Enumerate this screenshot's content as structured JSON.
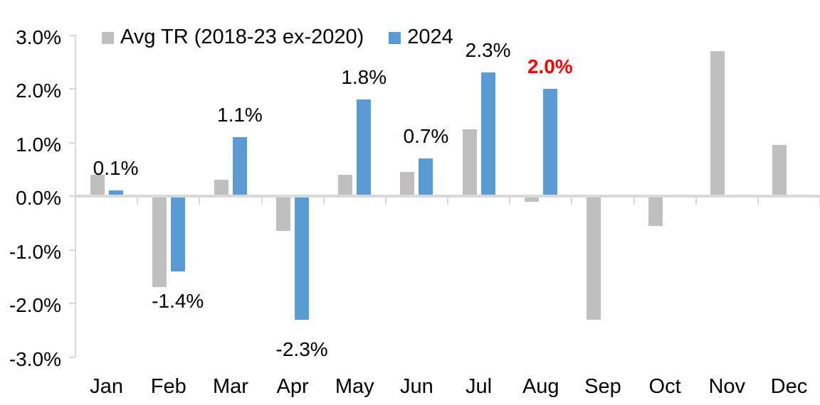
{
  "legend": {
    "series1_label": "Avg TR (2018-23 ex-2020)",
    "series2_label": "2024"
  },
  "colors": {
    "avg_series": "#bfbfbf",
    "y2024_series": "#5b9bd5",
    "axis": "#d9d9d9",
    "label_default": "#000000",
    "label_highlight": "#ff0000"
  },
  "chart_data": {
    "type": "bar",
    "title": "",
    "xlabel": "",
    "ylabel": "",
    "categories": [
      "Jan",
      "Feb",
      "Mar",
      "Apr",
      "May",
      "Jun",
      "Jul",
      "Aug",
      "Sep",
      "Oct",
      "Nov",
      "Dec"
    ],
    "series": [
      {
        "name": "Avg TR (2018-23 ex-2020)",
        "color": "#bfbfbf",
        "values": [
          0.4,
          -1.7,
          0.3,
          -0.65,
          0.4,
          0.45,
          1.25,
          -0.1,
          -2.3,
          -0.55,
          2.7,
          0.95
        ]
      },
      {
        "name": "2024",
        "color": "#5b9bd5",
        "values": [
          0.1,
          -1.4,
          1.1,
          -2.3,
          1.8,
          0.7,
          2.3,
          2.0,
          null,
          null,
          null,
          null
        ]
      }
    ],
    "data_labels": [
      {
        "category": "Jan",
        "text": "0.1%",
        "color": "#000000",
        "bold": false
      },
      {
        "category": "Feb",
        "text": "-1.4%",
        "color": "#000000",
        "bold": false
      },
      {
        "category": "Mar",
        "text": "1.1%",
        "color": "#000000",
        "bold": false
      },
      {
        "category": "Apr",
        "text": "-2.3%",
        "color": "#000000",
        "bold": false
      },
      {
        "category": "May",
        "text": "1.8%",
        "color": "#000000",
        "bold": false
      },
      {
        "category": "Jun",
        "text": "0.7%",
        "color": "#000000",
        "bold": false
      },
      {
        "category": "Jul",
        "text": "2.3%",
        "color": "#000000",
        "bold": false
      },
      {
        "category": "Aug",
        "text": "2.0%",
        "color": "#ff0000",
        "bold": true
      }
    ],
    "y_ticks": [
      {
        "value": 3,
        "label": "3.0%"
      },
      {
        "value": 2,
        "label": "2.0%"
      },
      {
        "value": 1,
        "label": "1.0%"
      },
      {
        "value": 0,
        "label": "0.0%"
      },
      {
        "value": -1,
        "label": "-1.0%"
      },
      {
        "value": -2,
        "label": "-2.0%"
      },
      {
        "value": -3,
        "label": "-3.0%"
      }
    ],
    "ylim": [
      -3,
      3
    ],
    "grid": false,
    "legend_position": "top"
  }
}
